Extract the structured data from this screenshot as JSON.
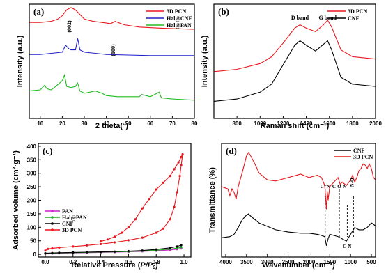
{
  "chart_data": [
    {
      "panel": "(a)",
      "type": "line",
      "xlabel": "2 theta(°)",
      "ylabel": "Intensity (a.u.)",
      "xlim": [
        5,
        80
      ],
      "xticks": [
        10,
        20,
        30,
        40,
        50,
        60,
        70,
        80
      ],
      "annotations": [
        {
          "text": "(002)",
          "x": 24
        },
        {
          "text": "(100)",
          "x": 44
        }
      ],
      "legend_position": "top-right",
      "series": [
        {
          "name": "3D PCN",
          "color": "#e8171d",
          "x": [
            5,
            10,
            15,
            18,
            20,
            22,
            24,
            26,
            28,
            30,
            34,
            38,
            42,
            44,
            48,
            55,
            65,
            80
          ],
          "y": [
            0.84,
            0.84,
            0.85,
            0.87,
            0.9,
            0.95,
            0.97,
            0.95,
            0.91,
            0.87,
            0.85,
            0.84,
            0.83,
            0.85,
            0.82,
            0.8,
            0.79,
            0.78
          ]
        },
        {
          "name": "Hal@CNF",
          "color": "#2222cc",
          "x": [
            5,
            10,
            15,
            20,
            21.5,
            23,
            24,
            26,
            27,
            28,
            30,
            35,
            40,
            50,
            60,
            70,
            80
          ],
          "y": [
            0.56,
            0.56,
            0.57,
            0.58,
            0.64,
            0.61,
            0.6,
            0.6,
            0.7,
            0.6,
            0.58,
            0.57,
            0.56,
            0.555,
            0.55,
            0.55,
            0.55
          ]
        },
        {
          "name": "Hal@PAN",
          "color": "#22bb22",
          "x": [
            5,
            10,
            12,
            13,
            15,
            17,
            20,
            21,
            22,
            24,
            26,
            27,
            28,
            30,
            35,
            38,
            40,
            45,
            50,
            55,
            56,
            60,
            62,
            64,
            65,
            70,
            80
          ],
          "y": [
            0.24,
            0.25,
            0.29,
            0.26,
            0.25,
            0.28,
            0.33,
            0.38,
            0.28,
            0.27,
            0.28,
            0.31,
            0.24,
            0.22,
            0.24,
            0.22,
            0.2,
            0.19,
            0.19,
            0.19,
            0.21,
            0.19,
            0.21,
            0.23,
            0.18,
            0.17,
            0.16
          ]
        }
      ]
    },
    {
      "panel": "(b)",
      "type": "line",
      "xlabel": "Raman shift (cm⁻¹)",
      "ylabel": "Intensity (a.u.)",
      "xlim": [
        600,
        2000
      ],
      "xticks": [
        800,
        1000,
        1200,
        1400,
        1600,
        1800,
        2000
      ],
      "annotations": [
        {
          "text": "D band",
          "x": 1345
        },
        {
          "text": "G band",
          "x": 1585
        }
      ],
      "legend_position": "top-right",
      "series": [
        {
          "name": "3D PCN",
          "color": "#e8171d",
          "x": [
            600,
            800,
            1000,
            1100,
            1200,
            1300,
            1345,
            1400,
            1480,
            1550,
            1585,
            1620,
            1700,
            1800,
            2000
          ],
          "y": [
            0.41,
            0.43,
            0.48,
            0.54,
            0.66,
            0.79,
            0.82,
            0.79,
            0.76,
            0.82,
            0.86,
            0.8,
            0.6,
            0.54,
            0.52
          ]
        },
        {
          "name": "CNF",
          "color": "#000000",
          "x": [
            600,
            800,
            1000,
            1100,
            1200,
            1300,
            1345,
            1400,
            1480,
            1550,
            1585,
            1620,
            1700,
            1800,
            2000
          ],
          "y": [
            0.15,
            0.17,
            0.23,
            0.3,
            0.47,
            0.64,
            0.68,
            0.64,
            0.59,
            0.65,
            0.68,
            0.6,
            0.36,
            0.3,
            0.28
          ]
        }
      ]
    },
    {
      "panel": "(c)",
      "type": "line",
      "xlabel": "Relative Pressure (P/P0)",
      "ylabel": "Adsorbed volume (cm³·g⁻¹)",
      "xlim": [
        -0.05,
        1.05
      ],
      "ylim": [
        -10,
        410
      ],
      "xticks": [
        0.0,
        0.2,
        0.4,
        0.6,
        0.8,
        1.0
      ],
      "yticks": [
        0,
        50,
        100,
        150,
        200,
        250,
        300,
        350,
        400
      ],
      "legend_position": "lower-left",
      "series": [
        {
          "name": "PAN",
          "color": "#cc22cc",
          "x": [
            0.0,
            0.05,
            0.1,
            0.2,
            0.3,
            0.4,
            0.5,
            0.6,
            0.7,
            0.8,
            0.9,
            0.95,
            0.98
          ],
          "y": [
            2,
            3,
            4,
            5,
            6,
            7,
            8,
            9,
            11,
            13,
            16,
            19,
            22
          ]
        },
        {
          "name": "Hal@PAN",
          "color": "#22aa22",
          "x": [
            0.0,
            0.05,
            0.1,
            0.2,
            0.3,
            0.4,
            0.5,
            0.6,
            0.7,
            0.8,
            0.9,
            0.95,
            0.98
          ],
          "y": [
            3,
            4,
            5,
            6,
            7,
            8,
            9,
            10,
            12,
            15,
            19,
            23,
            26
          ]
        },
        {
          "name": "CNF",
          "color": "#000000",
          "x": [
            0.0,
            0.05,
            0.1,
            0.2,
            0.3,
            0.4,
            0.5,
            0.6,
            0.7,
            0.8,
            0.9,
            0.95,
            0.98
          ],
          "y": [
            4,
            5,
            6,
            7,
            8,
            9,
            10,
            12,
            14,
            18,
            24,
            29,
            34
          ]
        },
        {
          "name": "3D PCN",
          "color": "#e8171d",
          "x": [
            0.0,
            0.02,
            0.05,
            0.1,
            0.2,
            0.3,
            0.4,
            0.5,
            0.6,
            0.7,
            0.8,
            0.85,
            0.9,
            0.93,
            0.95,
            0.97,
            0.98,
            0.99,
            0.98,
            0.96,
            0.93,
            0.9,
            0.85,
            0.8,
            0.75,
            0.7,
            0.65,
            0.6,
            0.55,
            0.5,
            0.45,
            0.4
          ],
          "y": [
            14,
            20,
            22,
            25,
            29,
            33,
            38,
            44,
            52,
            62,
            80,
            95,
            130,
            175,
            230,
            290,
            330,
            370,
            360,
            340,
            315,
            290,
            265,
            240,
            205,
            170,
            130,
            100,
            80,
            65,
            55,
            48
          ]
        }
      ]
    },
    {
      "panel": "(d)",
      "type": "line",
      "xlabel": "Wavenumber (cm⁻¹)",
      "ylabel": "Transmittance (%)",
      "xlim": [
        4100,
        400
      ],
      "xticks": [
        4000,
        3500,
        3000,
        2500,
        2000,
        1500,
        1000,
        500
      ],
      "annotations": [
        {
          "text": "C=N",
          "x": 1610
        },
        {
          "text": "C-O-N",
          "x": 1270
        },
        {
          "text": "N-O",
          "x": 930
        },
        {
          "text": "C-N",
          "x": 1080
        }
      ],
      "legend_position": "top-right",
      "series": [
        {
          "name": "CNF",
          "color": "#000000",
          "x": [
            4100,
            3900,
            3800,
            3700,
            3600,
            3500,
            3450,
            3400,
            3200,
            3000,
            2800,
            2500,
            2200,
            2000,
            1800,
            1700,
            1620,
            1580,
            1540,
            1500,
            1400,
            1300,
            1200,
            1100,
            1000,
            900,
            800,
            700,
            600,
            500,
            450,
            400
          ],
          "y": [
            0.17,
            0.18,
            0.2,
            0.26,
            0.33,
            0.37,
            0.38,
            0.36,
            0.3,
            0.27,
            0.24,
            0.22,
            0.21,
            0.21,
            0.2,
            0.19,
            0.18,
            0.1,
            0.16,
            0.2,
            0.19,
            0.18,
            0.16,
            0.14,
            0.2,
            0.26,
            0.24,
            0.24,
            0.26,
            0.3,
            0.29,
            0.27
          ]
        },
        {
          "name": "3D PCN",
          "color": "#e8171d",
          "x": [
            4100,
            3950,
            3900,
            3850,
            3800,
            3750,
            3700,
            3600,
            3500,
            3450,
            3400,
            3300,
            3200,
            3000,
            2800,
            2500,
            2200,
            2000,
            1800,
            1700,
            1620,
            1580,
            1560,
            1540,
            1500,
            1400,
            1300,
            1250,
            1200,
            1100,
            1000,
            950,
            900,
            850,
            800,
            750,
            700,
            650,
            600,
            550,
            500,
            450,
            400
          ],
          "y": [
            0.62,
            0.6,
            0.54,
            0.6,
            0.57,
            0.51,
            0.62,
            0.75,
            0.89,
            0.92,
            0.89,
            0.82,
            0.74,
            0.68,
            0.67,
            0.7,
            0.73,
            0.7,
            0.72,
            0.7,
            0.63,
            0.42,
            0.58,
            0.5,
            0.62,
            0.66,
            0.7,
            0.64,
            0.66,
            0.63,
            0.68,
            0.72,
            0.66,
            0.7,
            0.76,
            0.78,
            0.82,
            0.81,
            0.78,
            0.82,
            0.78,
            0.7,
            0.68
          ]
        }
      ]
    }
  ]
}
